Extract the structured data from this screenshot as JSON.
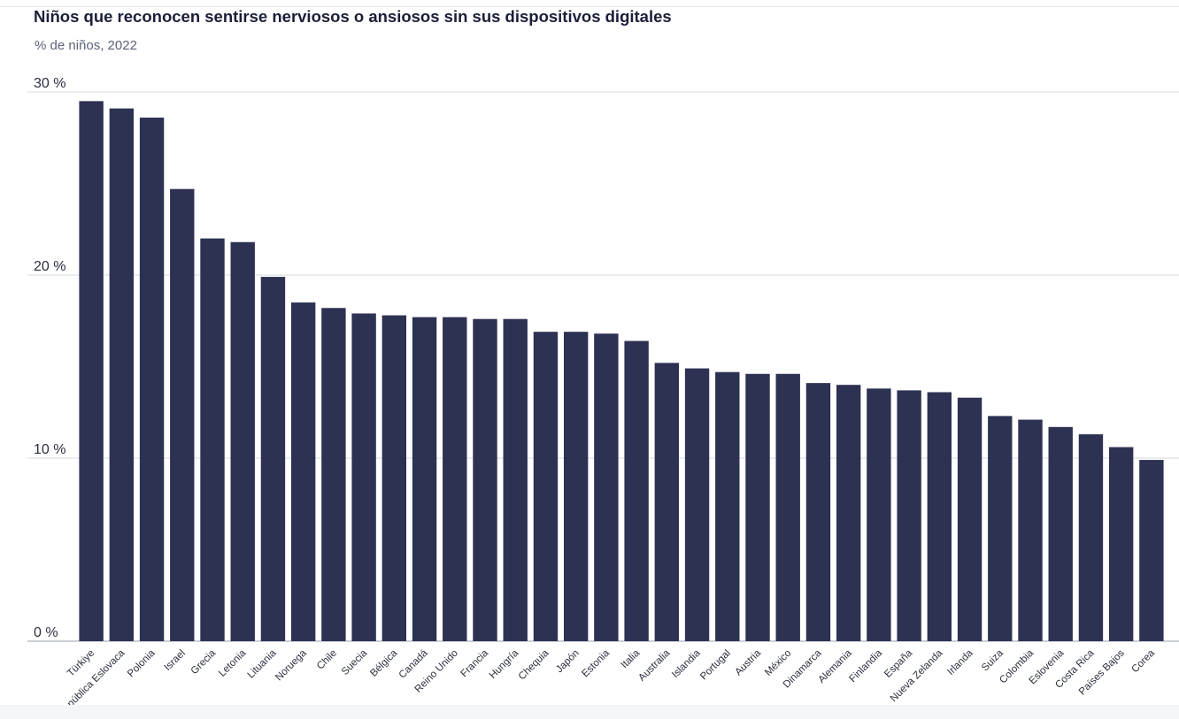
{
  "chart_data": {
    "type": "bar",
    "title": "Niños que reconocen sentirse nerviosos o ansiosos sin sus dispositivos digitales",
    "subtitle": "% de niños, 2022",
    "ylim": [
      0,
      30
    ],
    "yticks": [
      0,
      10,
      20,
      30
    ],
    "ytick_labels": [
      "0 %",
      "10 %",
      "20 %",
      "30 %"
    ],
    "grid": true,
    "bar_color": "#2d3152",
    "categories": [
      "Türkiye",
      "República Eslovaca",
      "Polonia",
      "Israel",
      "Grecia",
      "Letonia",
      "Lituania",
      "Noruega",
      "Chile",
      "Suecia",
      "Bélgica",
      "Canadá",
      "Reino Unido",
      "Francia",
      "Hungría",
      "Chequia",
      "Japón",
      "Estonia",
      "Italia",
      "Australia",
      "Islandia",
      "Portugal",
      "Austria",
      "México",
      "Dinamarca",
      "Alemania",
      "Finlandia",
      "España",
      "Nueva Zelanda",
      "Irlanda",
      "Suiza",
      "Colombia",
      "Eslovenia",
      "Costa Rica",
      "Países Bajos",
      "Corea"
    ],
    "values": [
      29.5,
      29.1,
      28.6,
      24.7,
      22.0,
      21.8,
      19.9,
      18.5,
      18.2,
      17.9,
      17.8,
      17.7,
      17.7,
      17.6,
      17.6,
      16.9,
      16.9,
      16.8,
      16.4,
      15.2,
      14.9,
      14.7,
      14.6,
      14.6,
      14.1,
      14.0,
      13.8,
      13.7,
      13.6,
      13.3,
      12.3,
      12.1,
      11.7,
      11.3,
      10.6,
      9.9
    ]
  }
}
